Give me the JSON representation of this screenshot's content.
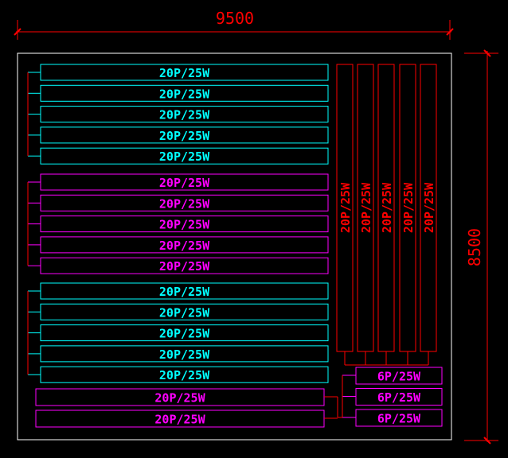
{
  "dimensions": {
    "width_label": "9500",
    "height_label": "8500"
  },
  "colors": {
    "background": "#000000",
    "dimension": "#ff0000",
    "frame": "#ffffff",
    "cyan": "#00ffff",
    "magenta": "#ff00ff",
    "red": "#ff0000"
  },
  "groups": [
    {
      "color": "cyan",
      "labels": [
        "20P/25W",
        "20P/25W",
        "20P/25W",
        "20P/25W",
        "20P/25W"
      ]
    },
    {
      "color": "magenta",
      "labels": [
        "20P/25W",
        "20P/25W",
        "20P/25W",
        "20P/25W",
        "20P/25W"
      ]
    },
    {
      "color": "cyan",
      "labels": [
        "20P/25W",
        "20P/25W",
        "20P/25W",
        "20P/25W",
        "20P/25W"
      ]
    }
  ],
  "bottom_strips": [
    "20P/25W",
    "20P/25W"
  ],
  "vertical_strips": [
    "20P/25W",
    "20P/25W",
    "20P/25W",
    "20P/25W",
    "20P/25W"
  ],
  "small_boxes": [
    "6P/25W",
    "6P/25W",
    "6P/25W"
  ]
}
